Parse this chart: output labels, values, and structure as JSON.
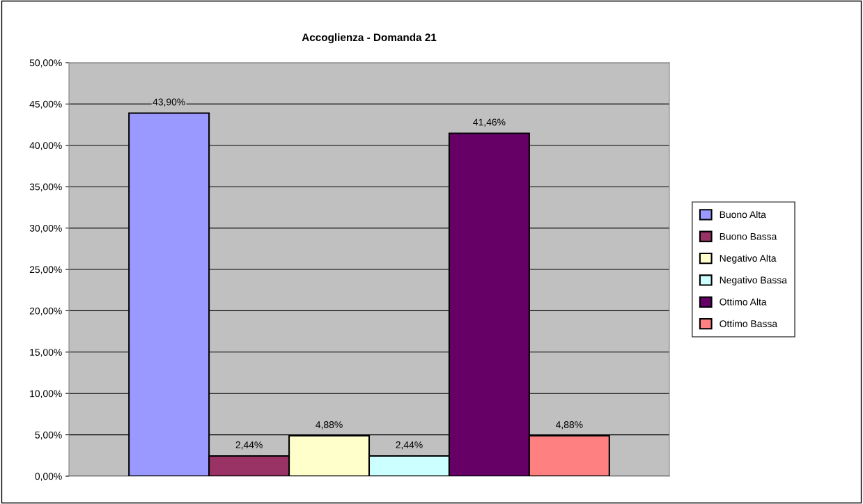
{
  "chart_data": {
    "type": "bar",
    "title": "Accoglienza - Domanda 21",
    "categories": [
      null
    ],
    "series": [
      {
        "name": "Buono Alta",
        "color": "#9999ff",
        "values": [
          43.9
        ],
        "value_labels": [
          "43,90%"
        ]
      },
      {
        "name": "Buono Bassa",
        "color": "#993366",
        "values": [
          2.44
        ],
        "value_labels": [
          "2,44%"
        ]
      },
      {
        "name": "Negativo Alta",
        "color": "#ffffcc",
        "values": [
          4.88
        ],
        "value_labels": [
          "4,88%"
        ]
      },
      {
        "name": "Negativo Bassa",
        "color": "#ccffff",
        "values": [
          2.44
        ],
        "value_labels": [
          "2,44%"
        ]
      },
      {
        "name": "Ottimo Alta",
        "color": "#660066",
        "values": [
          41.46
        ],
        "value_labels": [
          "41,46%"
        ]
      },
      {
        "name": "Ottimo Bassa",
        "color": "#ff8080",
        "values": [
          4.88
        ],
        "value_labels": [
          "4,88%"
        ]
      }
    ],
    "ylim": [
      0,
      50
    ],
    "yticks": [
      {
        "value": 0,
        "label": "0,00%"
      },
      {
        "value": 5,
        "label": "5,00%"
      },
      {
        "value": 10,
        "label": "10,00%"
      },
      {
        "value": 15,
        "label": "15,00%"
      },
      {
        "value": 20,
        "label": "20,00%"
      },
      {
        "value": 25,
        "label": "25,00%"
      },
      {
        "value": 30,
        "label": "30,00%"
      },
      {
        "value": 35,
        "label": "35,00%"
      },
      {
        "value": 40,
        "label": "40,00%"
      },
      {
        "value": 45,
        "label": "45,00%"
      },
      {
        "value": 50,
        "label": "50,00%"
      }
    ],
    "grid": "y",
    "legend": "right"
  }
}
